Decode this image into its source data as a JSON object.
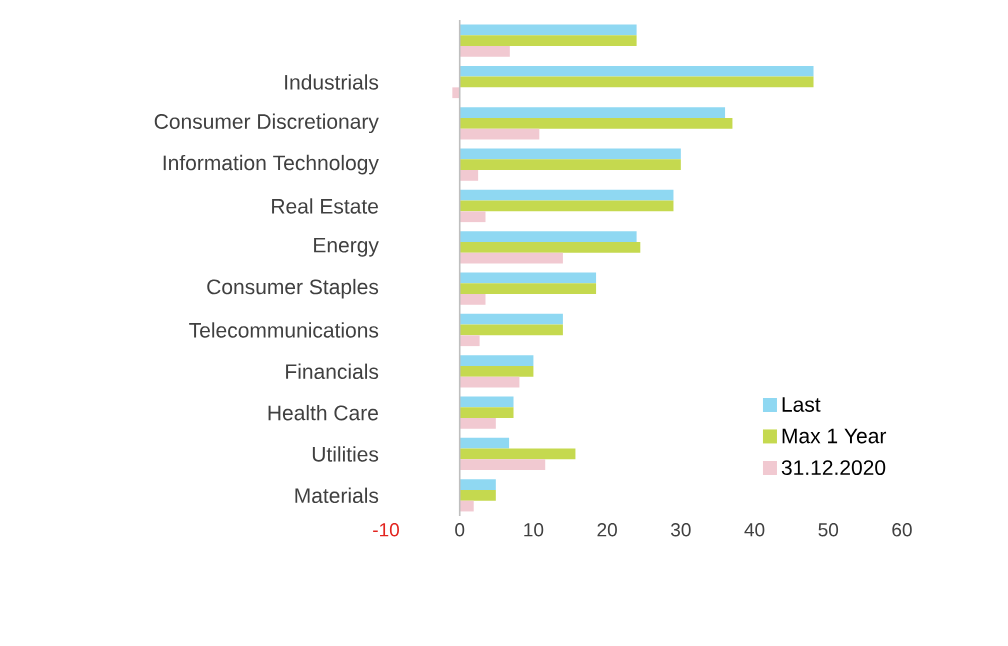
{
  "chart_data": {
    "type": "bar",
    "orientation": "horizontal",
    "categories": [
      null,
      "Industrials",
      "Consumer Discretionary",
      "Information Technology",
      "Real Estate",
      "Energy",
      "Consumer Staples",
      "Telecommunications",
      "Financials",
      "Health Care",
      "Utilities",
      "Materials"
    ],
    "series": [
      {
        "name": "Last",
        "color": "#8fd8f2",
        "values": [
          24,
          48,
          36,
          30,
          29,
          24,
          18.5,
          14,
          10,
          7.3,
          6.7,
          4.9
        ]
      },
      {
        "name": "Max 1 Year",
        "color": "#c5d94f",
        "values": [
          24,
          48,
          37,
          30,
          29,
          24.5,
          18.5,
          14,
          10,
          7.3,
          15.7,
          4.9
        ]
      },
      {
        "name": "31.12.2020",
        "color": "#f1c9d1",
        "values": [
          6.8,
          -1,
          10.8,
          2.5,
          3.5,
          14,
          3.5,
          2.7,
          8.1,
          4.9,
          11.6,
          1.9
        ]
      }
    ],
    "xlim": [
      -10,
      60
    ],
    "xticks": [
      -10,
      0,
      10,
      20,
      30,
      40,
      50,
      60
    ],
    "legend": "bottom right"
  }
}
